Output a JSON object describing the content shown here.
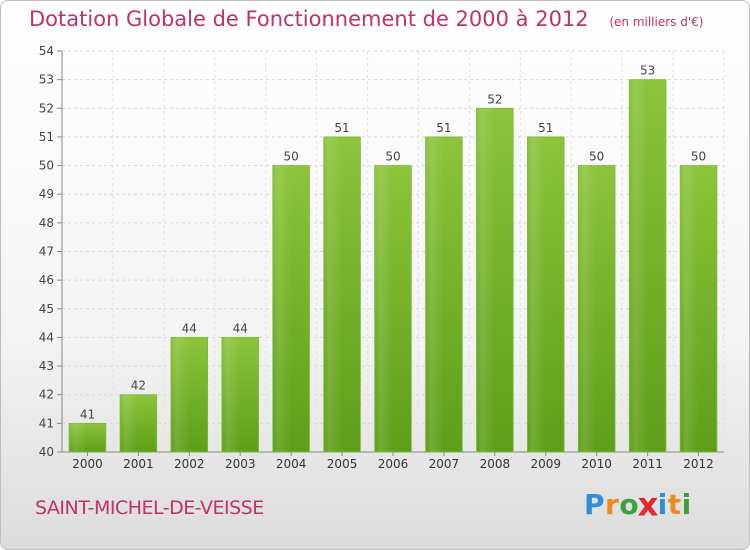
{
  "header": {
    "title": "Dotation Globale de Fonctionnement de 2000 à 2012",
    "unit": "(en milliers d'€)"
  },
  "footer": {
    "commune": "SAINT-MICHEL-DE-VEISSE",
    "logo_letters": [
      "P",
      "r",
      "o",
      "x",
      "i",
      "t",
      "i"
    ],
    "logo_colors": [
      "#2f8fd6",
      "#f08a1c",
      "#3aa03a",
      "#e0282e",
      "#2f8fd6",
      "#f08a1c",
      "#3aa03a"
    ]
  },
  "chart_data": {
    "type": "bar",
    "categories": [
      "2000",
      "2001",
      "2002",
      "2003",
      "2004",
      "2005",
      "2006",
      "2007",
      "2008",
      "2009",
      "2010",
      "2011",
      "2012"
    ],
    "values": [
      41,
      42,
      44,
      44,
      50,
      51,
      50,
      51,
      52,
      51,
      50,
      53,
      50
    ],
    "title": "Dotation Globale de Fonctionnement de 2000 à 2012",
    "subtitle": "(en milliers d'€)",
    "xlabel": "",
    "ylabel": "",
    "ylim": [
      40,
      54
    ],
    "yticks": [
      40,
      41,
      42,
      43,
      44,
      45,
      46,
      47,
      48,
      49,
      50,
      51,
      52,
      53,
      54
    ],
    "grid": true,
    "bar_color": "#8cc43c",
    "bar_color_dark": "#5e9e1a"
  }
}
